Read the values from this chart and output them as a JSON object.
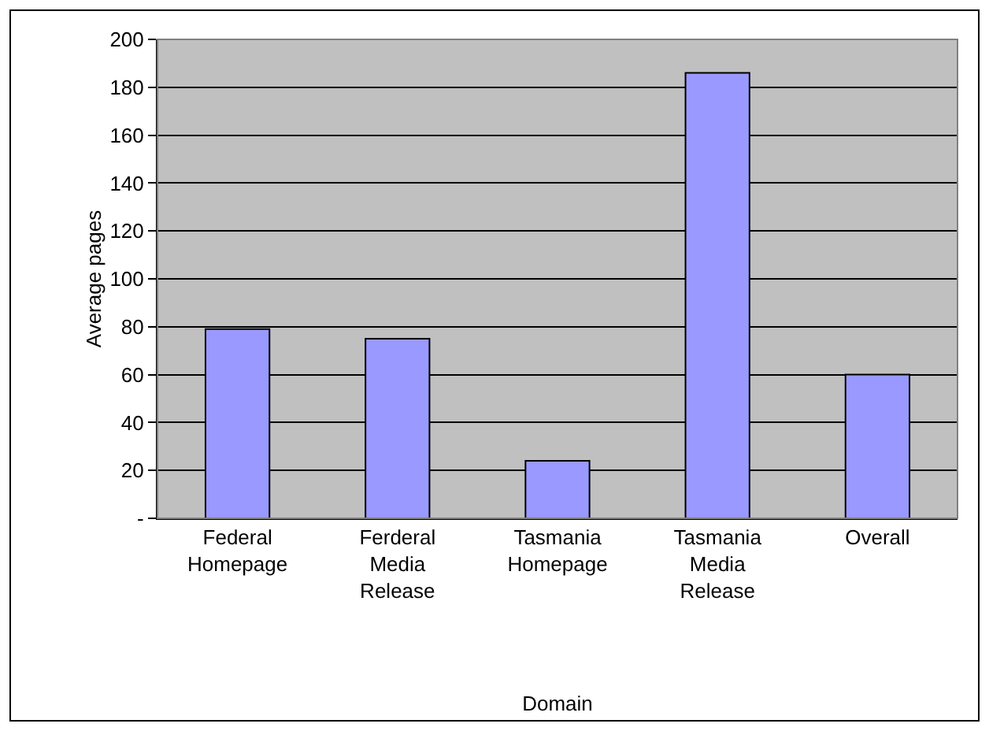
{
  "chart_data": {
    "type": "bar",
    "xlabel": "Domain",
    "ylabel": "Average pages",
    "categories": [
      "Federal Homepage",
      "Ferderal Media Release",
      "Tasmania Homepage",
      "Tasmania Media Release",
      "Overall"
    ],
    "values": [
      79,
      75,
      24,
      186,
      60
    ],
    "color": "#9999ff",
    "ylim": [
      0,
      200
    ],
    "yticks": [
      {
        "value": 0,
        "label": "-"
      },
      20,
      40,
      60,
      80,
      100,
      120,
      140,
      160,
      180,
      200
    ],
    "grid": "y",
    "legend": false
  }
}
